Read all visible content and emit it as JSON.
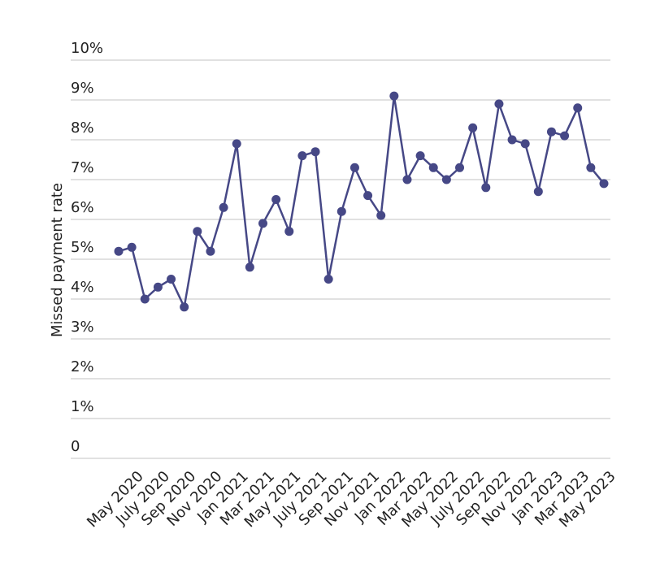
{
  "chart_data": {
    "type": "line",
    "y_label": "Missed payment rate",
    "categories": [
      null,
      "May 2020",
      null,
      "July 2020",
      null,
      "Sep 2020",
      null,
      "Nov 2020",
      null,
      "Jan 2021",
      null,
      "Mar 2021",
      null,
      "May 2021",
      null,
      "July 2021",
      null,
      "Sep 2021",
      null,
      "Nov 2021",
      null,
      "Jan 2022",
      null,
      "Mar 2022",
      null,
      "May 2022",
      null,
      "July 2022",
      null,
      "Sep 2022",
      null,
      "Nov 2022",
      null,
      "Jan 2023",
      null,
      "Mar 2023",
      null,
      "May 2023"
    ],
    "series": [
      {
        "name": "Missed payment rate",
        "color": "#464886",
        "values": [
          5.2,
          5.3,
          4.0,
          4.3,
          4.5,
          3.8,
          5.7,
          5.2,
          6.3,
          7.9,
          4.8,
          5.9,
          6.5,
          5.7,
          7.6,
          7.7,
          4.5,
          6.2,
          7.3,
          6.6,
          6.1,
          9.1,
          7.0,
          7.6,
          7.3,
          7.0,
          7.3,
          8.3,
          6.8,
          8.9,
          8.0,
          7.9,
          6.7,
          8.2,
          8.1,
          8.8,
          7.3,
          6.9
        ]
      }
    ],
    "ylim": [
      0,
      10
    ],
    "yticks": [
      {
        "value": 0,
        "label": "0"
      },
      {
        "value": 1,
        "label": "1%"
      },
      {
        "value": 2,
        "label": "2%"
      },
      {
        "value": 3,
        "label": "3%"
      },
      {
        "value": 4,
        "label": "4%"
      },
      {
        "value": 5,
        "label": "5%"
      },
      {
        "value": 6,
        "label": "6%"
      },
      {
        "value": 7,
        "label": "7%"
      },
      {
        "value": 8,
        "label": "8%"
      },
      {
        "value": 9,
        "label": "9%"
      },
      {
        "value": 10,
        "label": "10%"
      }
    ],
    "grid": true
  }
}
